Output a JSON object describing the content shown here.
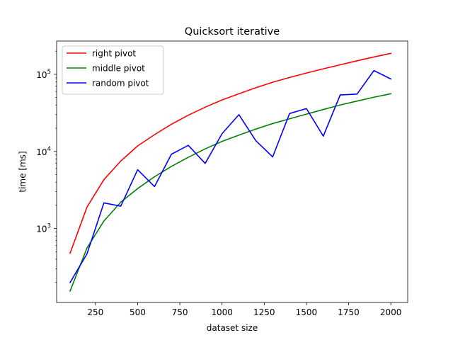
{
  "chart_data": {
    "type": "line",
    "title": "Quicksort iterative",
    "xlabel": "dataset size",
    "ylabel": "time [ms]",
    "xlim": [
      20,
      2100
    ],
    "ylim": [
      110,
      270000
    ],
    "yscale": "log",
    "grid": false,
    "legend_position": "top-left",
    "x": [
      100,
      200,
      300,
      400,
      500,
      600,
      700,
      800,
      900,
      1000,
      1100,
      1200,
      1300,
      1400,
      1500,
      1600,
      1700,
      1800,
      1900,
      2000
    ],
    "xticks": [
      250,
      500,
      750,
      1000,
      1250,
      1500,
      1750,
      2000
    ],
    "xtick_labels": [
      "250",
      "500",
      "750",
      "1000",
      "1250",
      "1500",
      "1750",
      "2000"
    ],
    "yticks": [
      1000,
      10000,
      100000
    ],
    "ytick_labels": [
      {
        "base": "10",
        "exp": "3"
      },
      {
        "base": "10",
        "exp": "4"
      },
      {
        "base": "10",
        "exp": "5"
      }
    ],
    "series": [
      {
        "name": "right pivot",
        "color": "#ff0000",
        "values": [
          480,
          1900,
          4300,
          7500,
          11800,
          16500,
          22500,
          29500,
          37500,
          46500,
          56000,
          67000,
          79000,
          91000,
          104000,
          118000,
          133000,
          150000,
          168000,
          187000
        ]
      },
      {
        "name": "middle pivot",
        "color": "#008000",
        "values": [
          155,
          560,
          1250,
          2200,
          3300,
          4700,
          6400,
          8400,
          10800,
          13500,
          16300,
          19500,
          23000,
          26500,
          30500,
          35000,
          40000,
          45000,
          50500,
          56000
        ]
      },
      {
        "name": "random pivot",
        "color": "#0000ff",
        "values": [
          200,
          470,
          2150,
          1950,
          5800,
          3500,
          9200,
          12000,
          7000,
          17000,
          30000,
          13800,
          8500,
          31000,
          36000,
          15800,
          54000,
          55500,
          112000,
          87000
        ]
      }
    ]
  }
}
